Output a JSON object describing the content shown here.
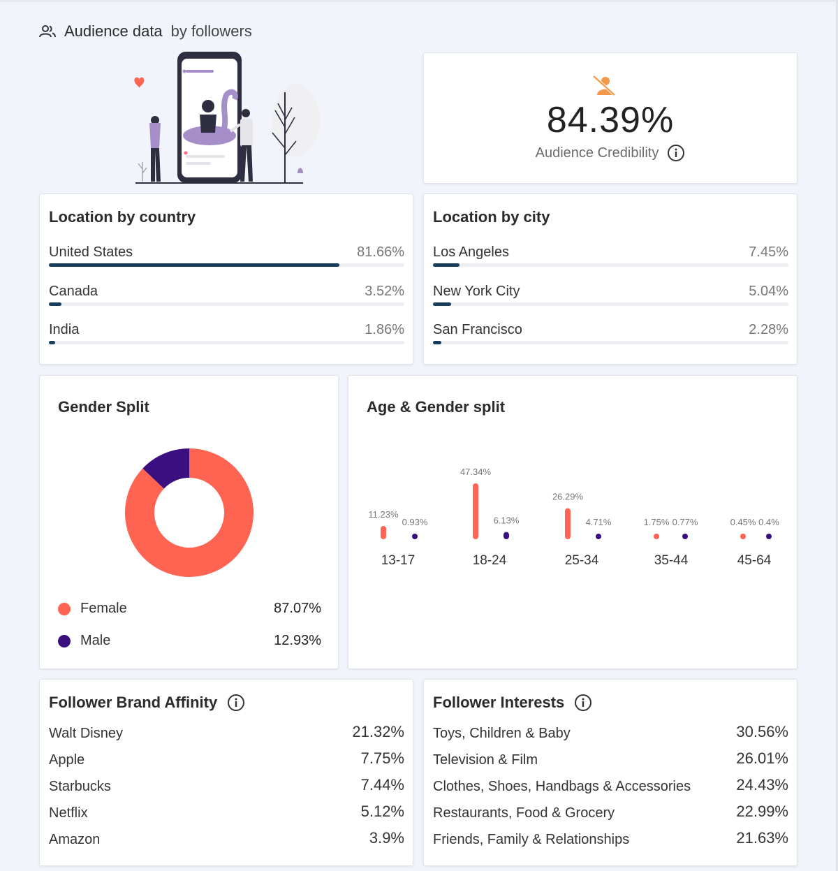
{
  "header": {
    "title_main": "Audience data",
    "title_sub": "by followers"
  },
  "credibility": {
    "value": "84.39%",
    "label": "Audience Credibility"
  },
  "location_country": {
    "title": "Location by country",
    "items": [
      {
        "name": "United States",
        "pct": "81.66%",
        "value": 81.66
      },
      {
        "name": "Canada",
        "pct": "3.52%",
        "value": 3.52
      },
      {
        "name": "India",
        "pct": "1.86%",
        "value": 1.86
      }
    ]
  },
  "location_city": {
    "title": "Location by city",
    "items": [
      {
        "name": "Los Angeles",
        "pct": "7.45%",
        "value": 7.45
      },
      {
        "name": "New York City",
        "pct": "5.04%",
        "value": 5.04
      },
      {
        "name": "San Francisco",
        "pct": "2.28%",
        "value": 2.28
      }
    ]
  },
  "gender": {
    "title": "Gender Split",
    "items": [
      {
        "name": "Female",
        "pct": "87.07%",
        "value": 87.07,
        "color": "#ff6452"
      },
      {
        "name": "Male",
        "pct": "12.93%",
        "value": 12.93,
        "color": "#3b0f80"
      }
    ]
  },
  "age": {
    "title": "Age & Gender split",
    "groups": [
      {
        "label": "13-17",
        "female": "11.23%",
        "female_value": 11.23,
        "male": "0.93%",
        "male_value": 0.93
      },
      {
        "label": "18-24",
        "female": "47.34%",
        "female_value": 47.34,
        "male": "6.13%",
        "male_value": 6.13
      },
      {
        "label": "25-34",
        "female": "26.29%",
        "female_value": 26.29,
        "male": "4.71%",
        "male_value": 4.71
      },
      {
        "label": "35-44",
        "female": "1.75%",
        "female_value": 1.75,
        "male": "0.77%",
        "male_value": 0.77
      },
      {
        "label": "45-64",
        "female": "0.45%",
        "female_value": 0.45,
        "male": "0.4%",
        "male_value": 0.4
      }
    ]
  },
  "brand_affinity": {
    "title": "Follower Brand Affinity",
    "items": [
      {
        "name": "Walt Disney",
        "pct": "21.32%"
      },
      {
        "name": "Apple",
        "pct": "7.75%"
      },
      {
        "name": "Starbucks",
        "pct": "7.44%"
      },
      {
        "name": "Netflix",
        "pct": "5.12%"
      },
      {
        "name": "Amazon",
        "pct": "3.9%"
      }
    ]
  },
  "interests": {
    "title": "Follower Interests",
    "items": [
      {
        "name": "Toys, Children & Baby",
        "pct": "30.56%"
      },
      {
        "name": "Television & Film",
        "pct": "26.01%"
      },
      {
        "name": "Clothes, Shoes, Handbags & Accessories",
        "pct": "24.43%"
      },
      {
        "name": "Restaurants, Food & Grocery",
        "pct": "22.99%"
      },
      {
        "name": "Friends, Family & Relationships",
        "pct": "21.63%"
      }
    ]
  },
  "colors": {
    "bar": "#163e5c",
    "female": "#ff6452",
    "male": "#3b0f80",
    "cred_icon": "#f39a4a"
  },
  "icons": {
    "header": "users-icon",
    "credibility": "user-slash-icon",
    "info": "info-icon"
  }
}
